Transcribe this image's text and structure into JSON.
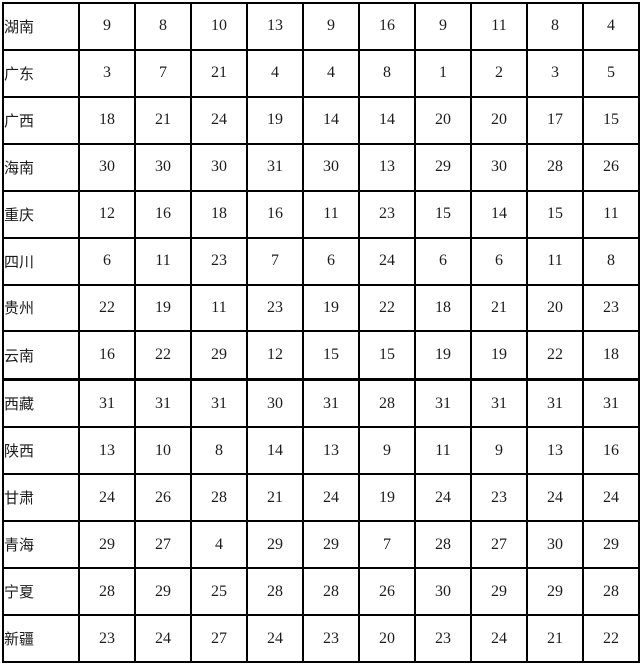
{
  "table": {
    "description": "province-data-grid",
    "value_columns": 10,
    "rows": [
      {
        "province": "湖南",
        "values": [
          9,
          8,
          10,
          13,
          9,
          16,
          9,
          11,
          8,
          4
        ]
      },
      {
        "province": "广东",
        "values": [
          3,
          7,
          21,
          4,
          4,
          8,
          1,
          2,
          3,
          5
        ]
      },
      {
        "province": "广西",
        "values": [
          18,
          21,
          24,
          19,
          14,
          14,
          20,
          20,
          17,
          15
        ]
      },
      {
        "province": "海南",
        "values": [
          30,
          30,
          30,
          31,
          30,
          13,
          29,
          30,
          28,
          26
        ]
      },
      {
        "province": "重庆",
        "values": [
          12,
          16,
          18,
          16,
          11,
          23,
          15,
          14,
          15,
          11
        ]
      },
      {
        "province": "四川",
        "values": [
          6,
          11,
          23,
          7,
          6,
          24,
          6,
          6,
          11,
          8
        ]
      },
      {
        "province": "贵州",
        "values": [
          22,
          19,
          11,
          23,
          19,
          22,
          18,
          21,
          20,
          23
        ]
      },
      {
        "province": "云南",
        "values": [
          16,
          22,
          29,
          12,
          15,
          15,
          19,
          19,
          22,
          18
        ]
      },
      {
        "province": "西藏",
        "values": [
          31,
          31,
          31,
          30,
          31,
          28,
          31,
          31,
          31,
          31
        ]
      },
      {
        "province": "陕西",
        "values": [
          13,
          10,
          8,
          14,
          13,
          9,
          11,
          9,
          13,
          16
        ]
      },
      {
        "province": "甘肃",
        "values": [
          24,
          26,
          28,
          21,
          24,
          19,
          24,
          23,
          24,
          24
        ]
      },
      {
        "province": "青海",
        "values": [
          29,
          27,
          4,
          29,
          29,
          7,
          28,
          27,
          30,
          29
        ]
      },
      {
        "province": "宁夏",
        "values": [
          28,
          29,
          25,
          28,
          28,
          26,
          30,
          29,
          29,
          28
        ]
      },
      {
        "province": "新疆",
        "values": [
          23,
          24,
          27,
          24,
          23,
          20,
          23,
          24,
          21,
          22
        ]
      }
    ]
  },
  "colors": {
    "border": "#000000",
    "text": "#1c1c1c",
    "background": "#ffffff"
  }
}
